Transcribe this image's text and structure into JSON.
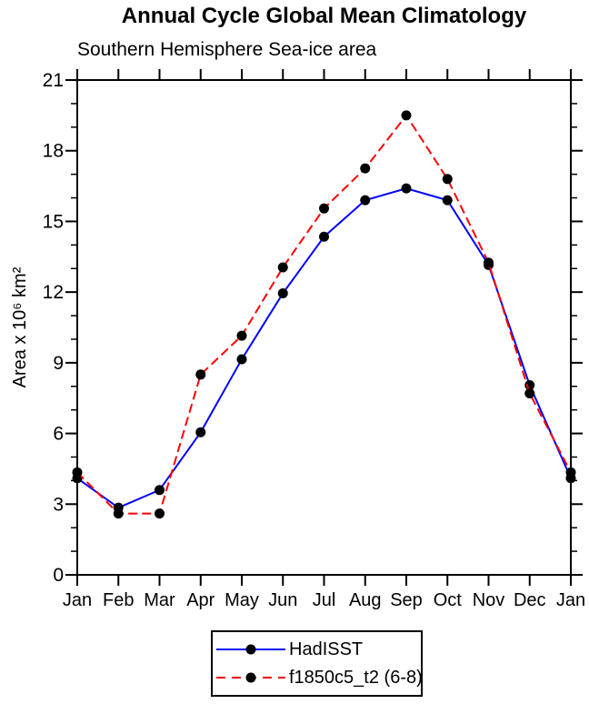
{
  "chart_data": {
    "type": "line",
    "title": "Annual Cycle Global Mean Climatology",
    "subtitle": "Southern Hemisphere Sea-ice area",
    "categories": [
      "Jan",
      "Feb",
      "Mar",
      "Apr",
      "May",
      "Jun",
      "Jul",
      "Aug",
      "Sep",
      "Oct",
      "Nov",
      "Dec",
      "Jan"
    ],
    "xlabel": "",
    "ylabel": "Area x 10⁶ km²",
    "ylim": [
      0,
      21
    ],
    "ytick_major_interval": 3,
    "ytick_minor_interval": 1,
    "ytick_labels": [
      "0",
      "3",
      "6",
      "9",
      "12",
      "15",
      "18",
      "21"
    ],
    "grid": false,
    "axis_color": "#000000",
    "marker_color": "#000000",
    "legend_position": "bottom-center",
    "series": [
      {
        "name": "HadISST",
        "color": "#0000ff",
        "line_style": "solid",
        "marker": "filled-circle",
        "values": [
          4.1,
          2.85,
          3.6,
          6.05,
          9.15,
          11.95,
          14.35,
          15.9,
          16.4,
          15.9,
          13.15,
          8.05,
          4.1
        ]
      },
      {
        "name": "f1850c5_t2 (6-8)",
        "color": "#ff0000",
        "line_style": "dashed",
        "marker": "filled-circle",
        "values": [
          4.35,
          2.6,
          2.6,
          8.5,
          10.15,
          13.05,
          15.55,
          17.25,
          19.5,
          16.8,
          13.25,
          7.7,
          4.35
        ]
      }
    ]
  }
}
